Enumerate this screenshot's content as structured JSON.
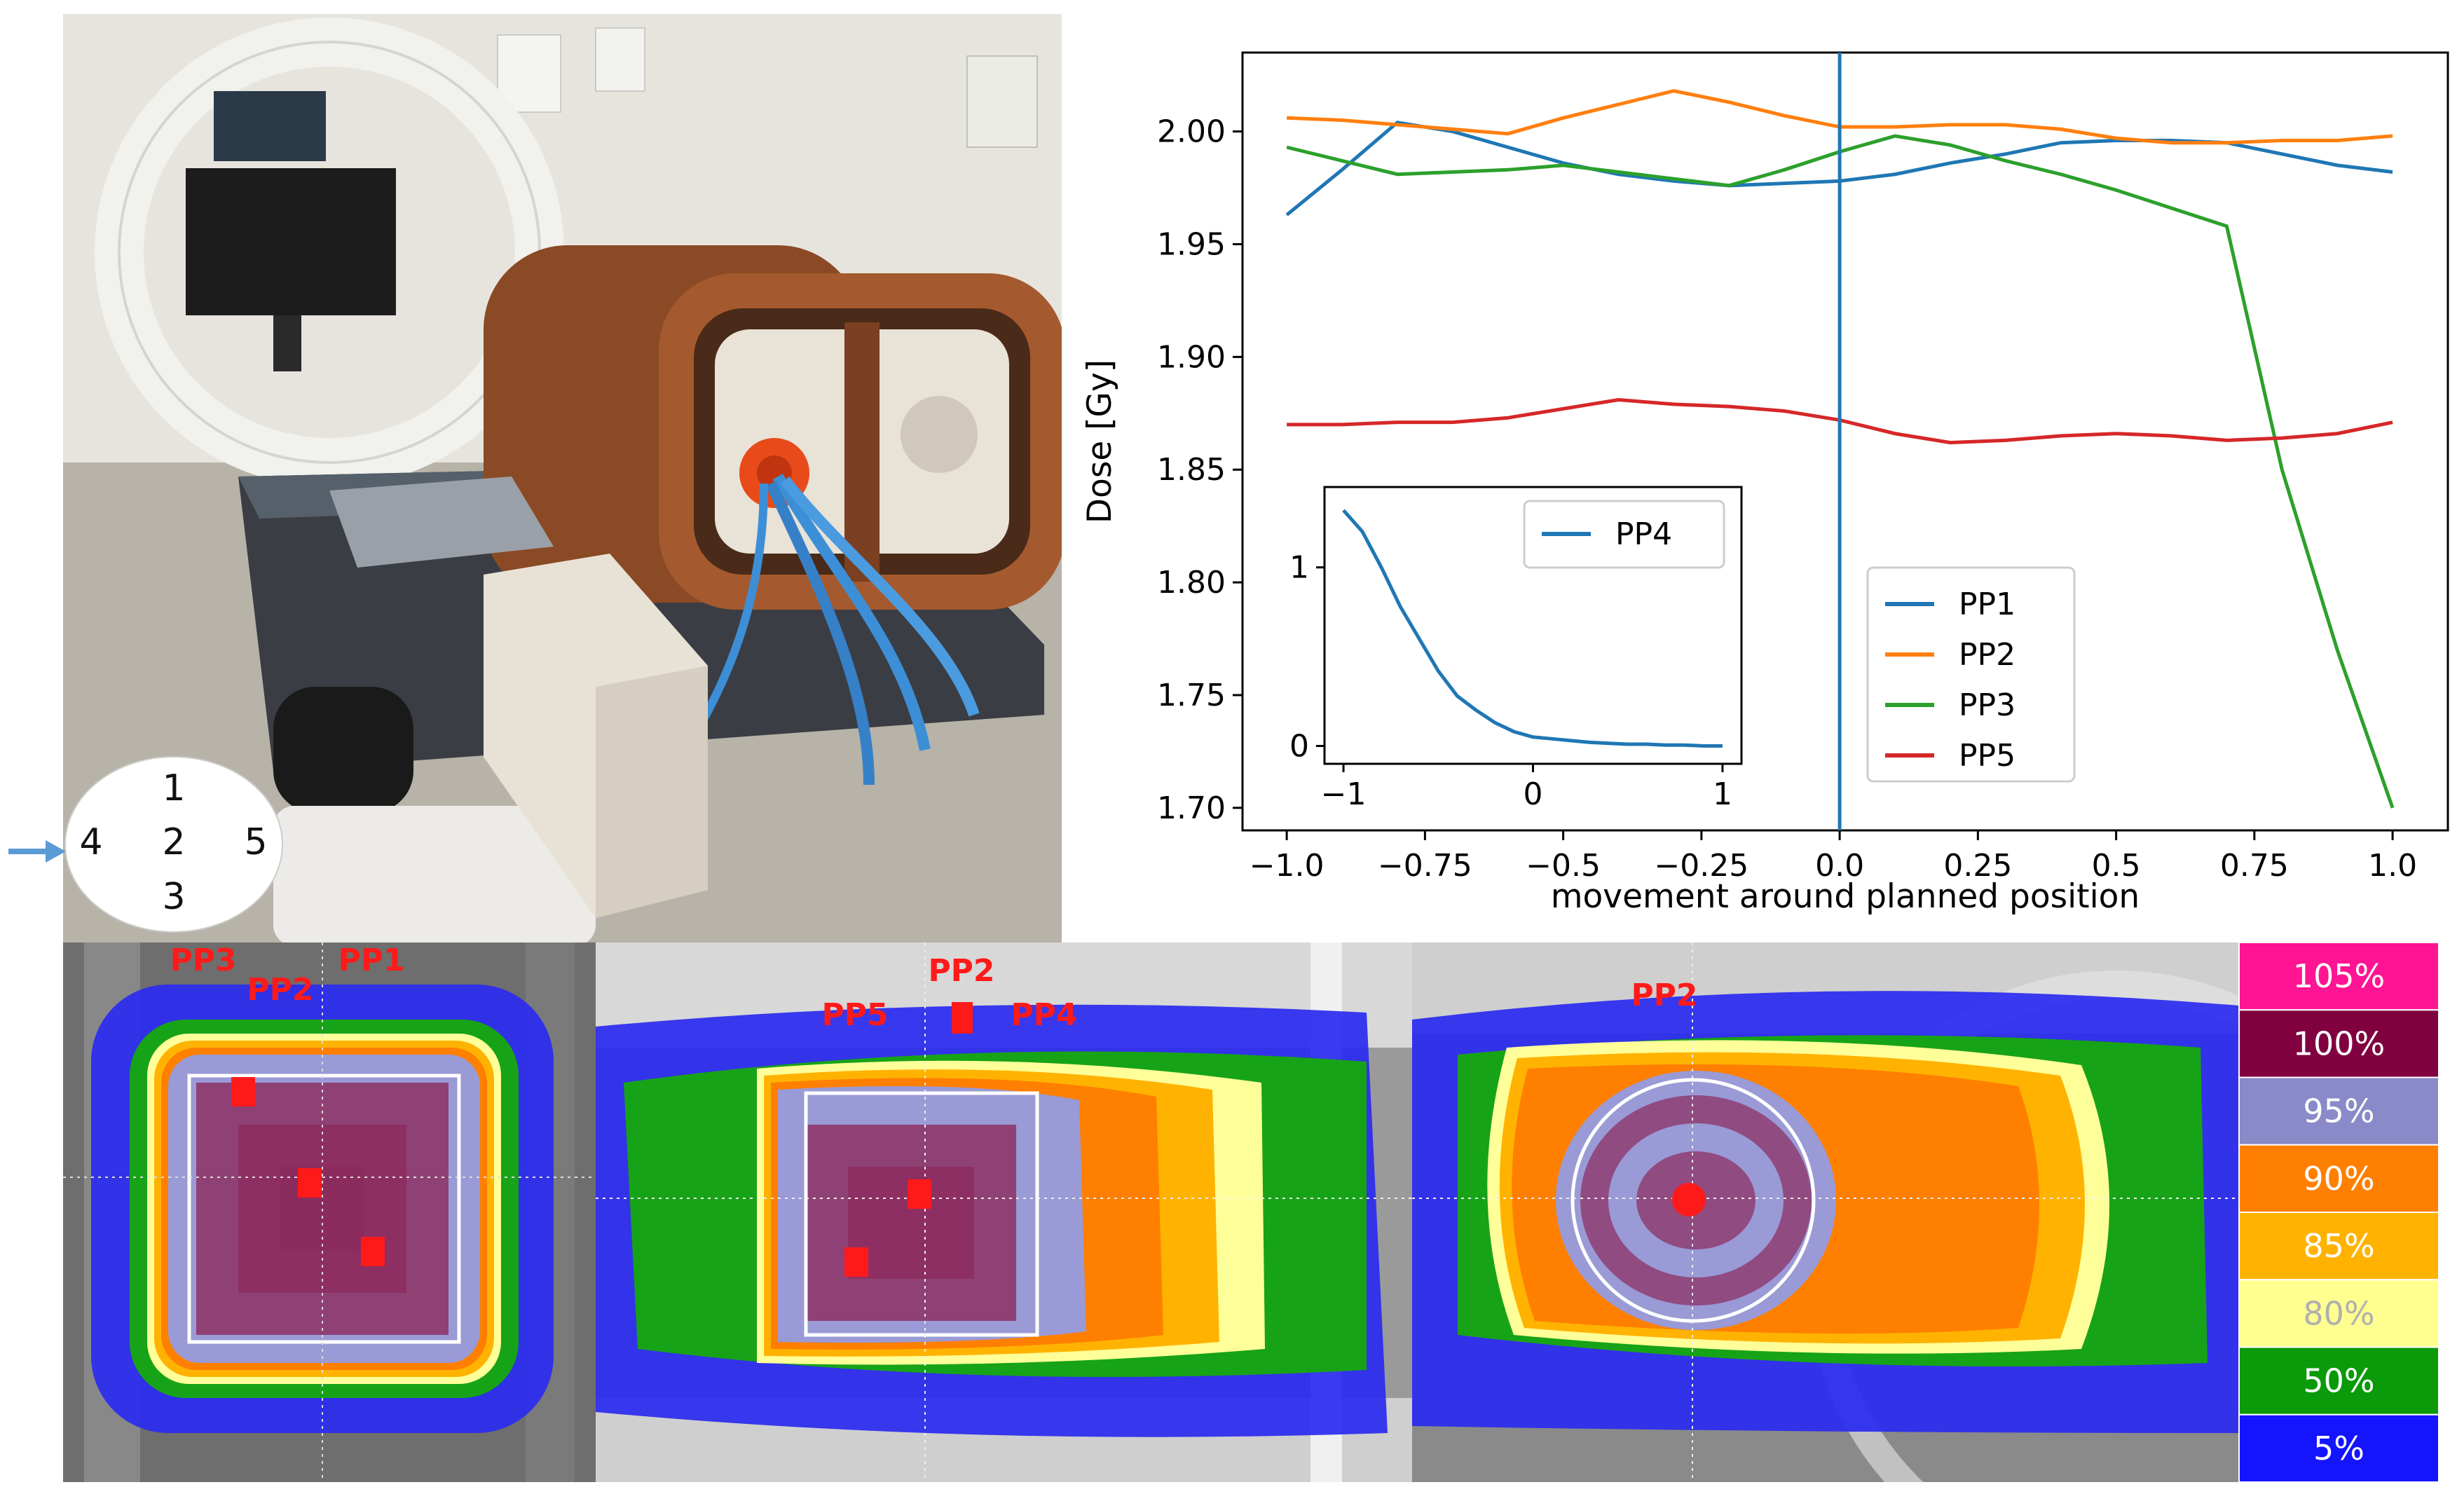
{
  "photo": {
    "position_diagram": {
      "top": "1",
      "left": "4",
      "center": "2",
      "right": "5",
      "bottom": "3"
    }
  },
  "chart_data": {
    "type": "line",
    "xlabel": "movement around planned position",
    "ylabel": "Dose [Gy]",
    "xlim": [
      -1.08,
      1.1
    ],
    "ylim": [
      1.69,
      2.035
    ],
    "xticks": [
      "−1.0",
      "−0.75",
      "−0.5",
      "−0.25",
      "0.0",
      "0.25",
      "0.5",
      "0.75",
      "1.0"
    ],
    "xtick_values": [
      -1.0,
      -0.75,
      -0.5,
      -0.25,
      0.0,
      0.25,
      0.5,
      0.75,
      1.0
    ],
    "yticks": [
      "1.70",
      "1.75",
      "1.80",
      "1.85",
      "1.90",
      "1.95",
      "2.00"
    ],
    "ytick_values": [
      1.7,
      1.75,
      1.8,
      1.85,
      1.9,
      1.95,
      2.0
    ],
    "vline_x": 0.0,
    "legend_position": "lower-right",
    "series": [
      {
        "name": "PP1",
        "color": "#1f77b4",
        "x": [
          -1.0,
          -0.9,
          -0.8,
          -0.7,
          -0.6,
          -0.5,
          -0.4,
          -0.3,
          -0.2,
          -0.1,
          0.0,
          0.1,
          0.2,
          0.3,
          0.4,
          0.5,
          0.6,
          0.7,
          0.8,
          0.9,
          1.0
        ],
        "y": [
          1.963,
          1.983,
          2.004,
          2.0,
          1.993,
          1.986,
          1.981,
          1.978,
          1.976,
          1.977,
          1.978,
          1.981,
          1.986,
          1.99,
          1.995,
          1.996,
          1.996,
          1.995,
          1.99,
          1.985,
          1.982
        ]
      },
      {
        "name": "PP2",
        "color": "#ff7f0e",
        "x": [
          -1.0,
          -0.9,
          -0.8,
          -0.7,
          -0.6,
          -0.5,
          -0.4,
          -0.3,
          -0.2,
          -0.1,
          0.0,
          0.1,
          0.2,
          0.3,
          0.4,
          0.5,
          0.6,
          0.7,
          0.8,
          0.9,
          1.0
        ],
        "y": [
          2.006,
          2.005,
          2.003,
          2.001,
          1.999,
          2.006,
          2.012,
          2.018,
          2.013,
          2.007,
          2.002,
          2.002,
          2.003,
          2.003,
          2.001,
          1.997,
          1.995,
          1.995,
          1.996,
          1.996,
          1.998
        ]
      },
      {
        "name": "PP3",
        "color": "#2ca02c",
        "x": [
          -1.0,
          -0.9,
          -0.8,
          -0.7,
          -0.6,
          -0.5,
          -0.4,
          -0.3,
          -0.2,
          -0.1,
          0.0,
          0.1,
          0.2,
          0.3,
          0.4,
          0.5,
          0.6,
          0.7,
          0.8,
          0.9,
          1.0
        ],
        "y": [
          1.993,
          1.987,
          1.981,
          1.982,
          1.983,
          1.985,
          1.982,
          1.979,
          1.976,
          1.983,
          1.991,
          1.998,
          1.994,
          1.987,
          1.981,
          1.974,
          1.966,
          1.958,
          1.85,
          1.77,
          1.7
        ]
      },
      {
        "name": "PP5",
        "color": "#d62728",
        "x": [
          -1.0,
          -0.9,
          -0.8,
          -0.7,
          -0.6,
          -0.5,
          -0.4,
          -0.3,
          -0.2,
          -0.1,
          0.0,
          0.1,
          0.2,
          0.3,
          0.4,
          0.5,
          0.6,
          0.7,
          0.8,
          0.9,
          1.0
        ],
        "y": [
          1.87,
          1.87,
          1.871,
          1.871,
          1.873,
          1.877,
          1.881,
          1.879,
          1.878,
          1.876,
          1.872,
          1.866,
          1.862,
          1.863,
          1.865,
          1.866,
          1.865,
          1.863,
          1.864,
          1.866,
          1.871
        ]
      }
    ],
    "inset": {
      "xlim": [
        -1.1,
        1.1
      ],
      "ylim": [
        -0.1,
        1.45
      ],
      "xticks": [
        "−1",
        "0",
        "1"
      ],
      "xtick_values": [
        -1,
        0,
        1
      ],
      "yticks": [
        "0",
        "1"
      ],
      "ytick_values": [
        0,
        1
      ],
      "legend_position": "upper-right",
      "series": [
        {
          "name": "PP4",
          "color": "#1f77b4",
          "x": [
            -1.0,
            -0.9,
            -0.8,
            -0.7,
            -0.6,
            -0.5,
            -0.4,
            -0.3,
            -0.2,
            -0.1,
            0.0,
            0.1,
            0.2,
            0.3,
            0.4,
            0.5,
            0.6,
            0.7,
            0.8,
            0.9,
            1.0
          ],
          "y": [
            1.32,
            1.2,
            1.0,
            0.78,
            0.6,
            0.42,
            0.28,
            0.2,
            0.13,
            0.08,
            0.05,
            0.04,
            0.03,
            0.02,
            0.015,
            0.01,
            0.01,
            0.005,
            0.005,
            0.0,
            0.0
          ]
        }
      ]
    }
  },
  "dose_maps": {
    "panel1_labels": [
      "PP3",
      "PP2",
      "PP1"
    ],
    "panel2_labels": [
      "PP2",
      "PP5",
      "PP4"
    ],
    "panel3_labels": [
      "PP2"
    ]
  },
  "colorbar": {
    "labels": [
      "105%",
      "100%",
      "95%",
      "90%",
      "85%",
      "80%",
      "50%",
      "5%"
    ],
    "colors": [
      "#ff1493",
      "#800040",
      "#8a8ac8",
      "#ff7f00",
      "#ffb300",
      "#ffff90",
      "#0a9a0a",
      "#1414ff"
    ],
    "text_colors": [
      "#ffffff",
      "#ffffff",
      "#ffffff",
      "#ffffff",
      "#ffffff",
      "#b0b0b0",
      "#ffffff",
      "#ffffff"
    ]
  }
}
